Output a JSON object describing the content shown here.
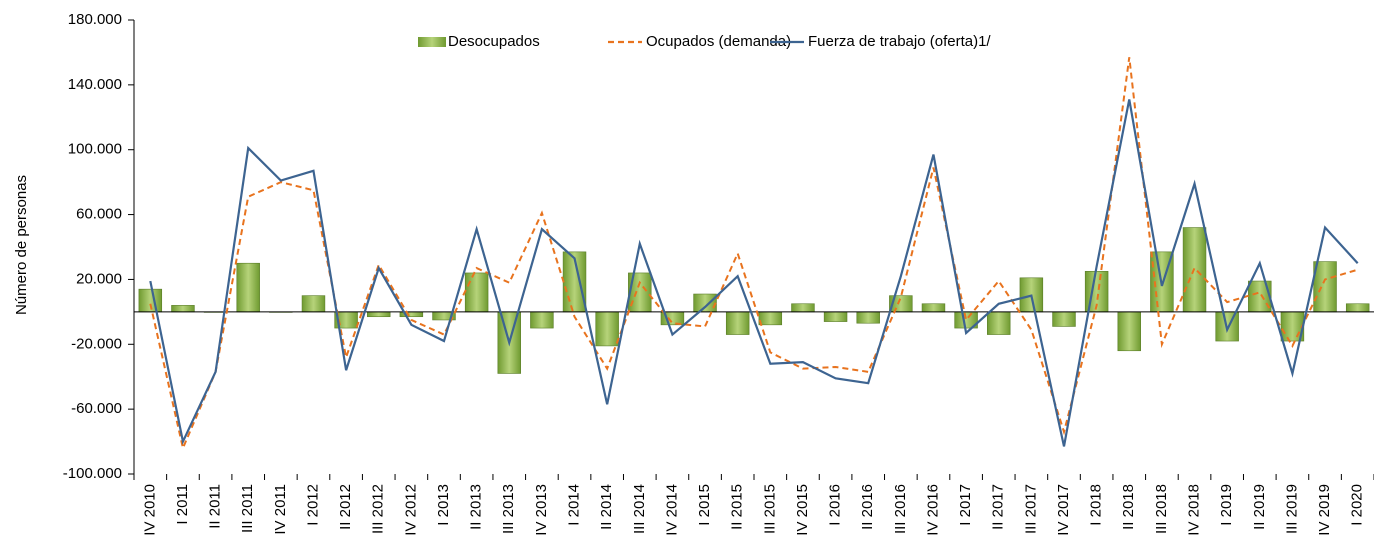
{
  "chart_data": {
    "type": "bar",
    "y_label": "Número de personas",
    "categories": [
      "IV 2010",
      "I 2011",
      "II 2011",
      "III 2011",
      "IV 2011",
      "I 2012",
      "II 2012",
      "III 2012",
      "IV 2012",
      "I 2013",
      "II 2013",
      "III 2013",
      "IV 2013",
      "I 2014",
      "II 2014",
      "III 2014",
      "IV 2014",
      "I 2015",
      "II 2015",
      "III 2015",
      "IV 2015",
      "I 2016",
      "II 2016",
      "III 2016",
      "IV 2016",
      "I 2017",
      "II 2017",
      "III 2017",
      "IV 2017",
      "I 2018",
      "II 2018",
      "III 2018",
      "IV 2018",
      "I 2019",
      "II 2019",
      "III 2019",
      "IV 2019",
      "I 2020"
    ],
    "series": [
      {
        "name": "Desocupados",
        "type": "bar",
        "color": "#8cb24a",
        "values": [
          14000,
          4000,
          0,
          30000,
          0,
          10000,
          -10000,
          -3000,
          -3000,
          -5000,
          24000,
          -38000,
          -10000,
          37000,
          -21000,
          24000,
          -8000,
          11000,
          -14000,
          -8000,
          5000,
          -6000,
          -7000,
          10000,
          5000,
          -10000,
          -14000,
          21000,
          -9000,
          25000,
          -24000,
          37000,
          52000,
          -18000,
          19000,
          -18000,
          31000,
          5000
        ]
      },
      {
        "name": "Ocupados (demanda)",
        "type": "line",
        "dash": true,
        "color": "#e8731e",
        "values": [
          5000,
          -84000,
          -37000,
          71000,
          80000,
          75000,
          -28000,
          29000,
          -5000,
          -14000,
          27000,
          18000,
          61000,
          -3000,
          -35000,
          18000,
          -7000,
          -9000,
          36000,
          -25000,
          -35000,
          -34000,
          -37000,
          9000,
          89000,
          -5000,
          19000,
          -11000,
          -74000,
          4000,
          157000,
          -20000,
          27000,
          6000,
          12000,
          -21000,
          20000,
          26000
        ]
      },
      {
        "name": "Fuerza de trabajo (oferta)1/",
        "type": "line",
        "dash": false,
        "color": "#3d6491",
        "values": [
          19000,
          -80000,
          -37000,
          101000,
          81000,
          87000,
          -36000,
          27000,
          -8000,
          -18000,
          51000,
          -19000,
          51000,
          33000,
          -57000,
          42000,
          -14000,
          3000,
          22000,
          -32000,
          -31000,
          -41000,
          -44000,
          22000,
          97000,
          -13000,
          5000,
          10000,
          -83000,
          28000,
          131000,
          16000,
          79000,
          -11000,
          30000,
          -38000,
          52000,
          30000
        ]
      }
    ],
    "ylim": [
      -100000,
      180000
    ],
    "yticks": [
      {
        "value": -100000,
        "label": "-100.000"
      },
      {
        "value": -60000,
        "label": "-60.000"
      },
      {
        "value": -20000,
        "label": "-20.000"
      },
      {
        "value": 20000,
        "label": "20.000"
      },
      {
        "value": 60000,
        "label": "60.000"
      },
      {
        "value": 100000,
        "label": "100.000"
      },
      {
        "value": 140000,
        "label": "140.000"
      },
      {
        "value": 180000,
        "label": "180.000"
      }
    ],
    "legend": "top"
  }
}
